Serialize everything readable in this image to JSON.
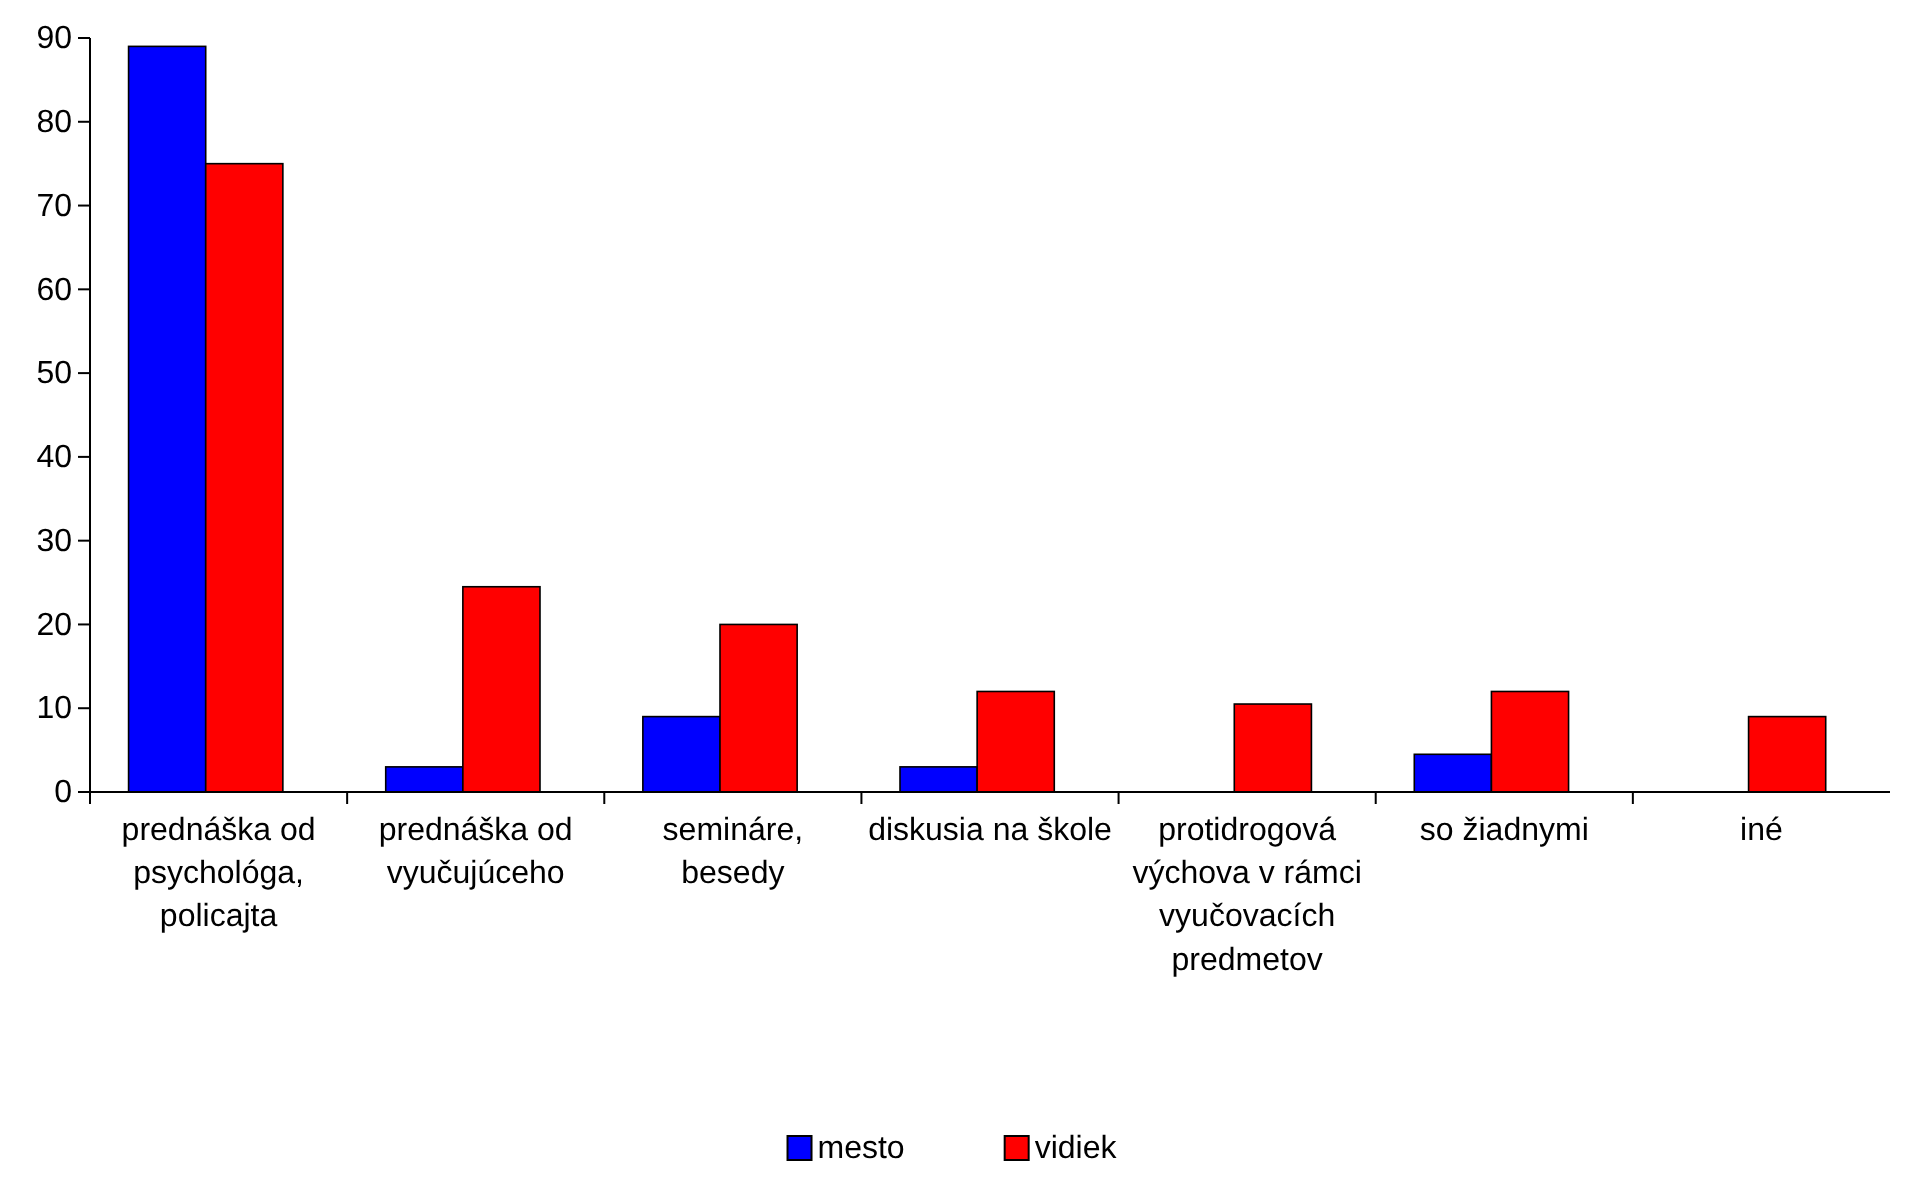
{
  "chart_data": {
    "type": "bar",
    "categories": [
      "prednáška od psychológa, policajta",
      "prednáška od vyučujúceho",
      "semináre, besedy",
      "diskusia na škole",
      "protidrogová výchova v rámci vyučovacích predmetov",
      "so žiadnymi",
      "iné"
    ],
    "series": [
      {
        "name": "mesto",
        "color": "#0000ff",
        "values": [
          89,
          3,
          9,
          3,
          0,
          4.5,
          0
        ]
      },
      {
        "name": "vidiek",
        "color": "#ff0000",
        "values": [
          75,
          24.5,
          20,
          12,
          10.5,
          12,
          9
        ]
      }
    ],
    "ylim": [
      0,
      90
    ],
    "yticks": [
      0,
      10,
      20,
      30,
      40,
      50,
      60,
      70,
      80,
      90
    ],
    "grid": false,
    "legend": "bottom"
  }
}
